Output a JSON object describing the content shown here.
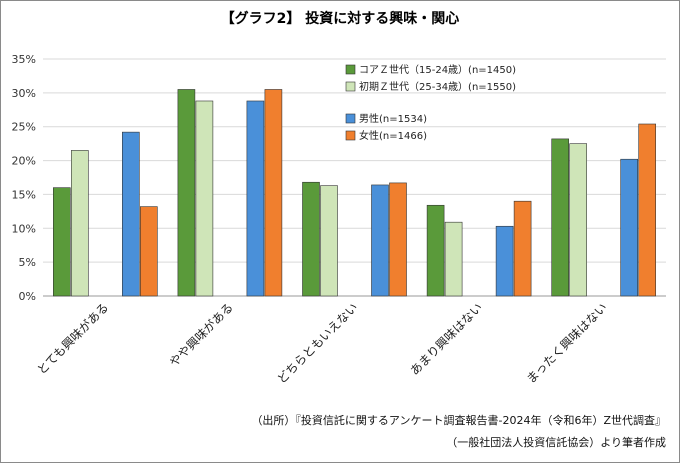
{
  "chart_data": {
    "type": "bar",
    "title": "【グラフ2】 投資に対する興味・関心",
    "categories": [
      "とても興味がある",
      "やや興味がある",
      "どちらともいえない",
      "あまり興味はない",
      "まったく興味はない"
    ],
    "series": [
      {
        "name": "コアＺ世代（15-24歳）(n=1450)",
        "color": "#5a9a3a",
        "values": [
          16.0,
          30.5,
          16.8,
          13.4,
          23.2
        ]
      },
      {
        "name": "初期Ｚ世代（25-34歳）(n=1550)",
        "color": "#cfe5b8",
        "values": [
          21.5,
          28.8,
          16.3,
          10.9,
          22.5
        ]
      },
      {
        "name": "男性(n=1534)",
        "color": "#4a90d9",
        "values": [
          24.2,
          28.8,
          16.4,
          10.3,
          20.2
        ]
      },
      {
        "name": "女性(n=1466)",
        "color": "#f07f2e",
        "values": [
          13.2,
          30.5,
          16.7,
          14.0,
          25.4
        ]
      }
    ],
    "ylim": [
      0,
      35
    ],
    "yticks": [
      "0%",
      "5%",
      "10%",
      "15%",
      "20%",
      "25%",
      "30%",
      "35%"
    ],
    "grid": true,
    "legend": "top-right"
  },
  "source_line1": "（出所）『投資信託に関するアンケート調査報告書-2024年（令和6年）Z世代調査』",
  "source_line2": "（一般社団法人投資信託協会）より筆者作成"
}
